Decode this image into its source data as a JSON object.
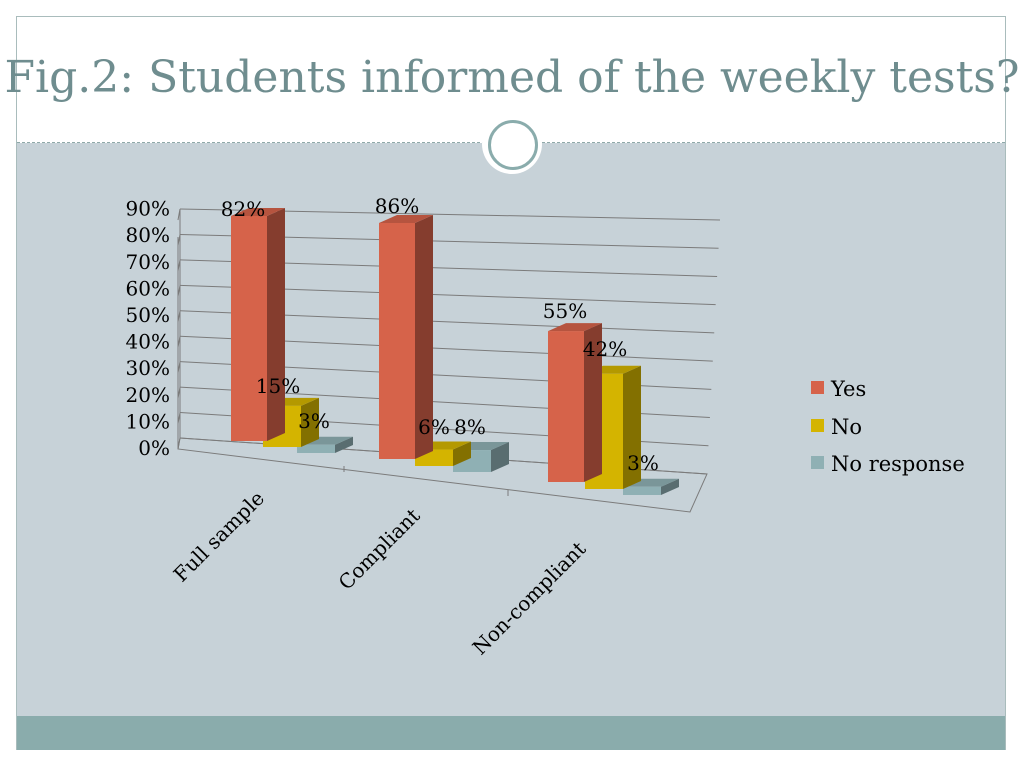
{
  "slide": {
    "title": "Fig.2: Students informed of the weekly tests?"
  },
  "colors": {
    "background": "#c7d2d8",
    "footer": "#8aacac",
    "title": "#6f8d8f"
  },
  "chart_data": {
    "type": "bar",
    "style": "3d-clustered",
    "categories": [
      "Full sample",
      "Compliant",
      "Non-compliant"
    ],
    "series": [
      {
        "name": "Yes",
        "color": "#d6634a",
        "values": [
          82,
          86,
          55
        ],
        "labels": [
          "82%",
          "86%",
          "55%"
        ]
      },
      {
        "name": "No",
        "color": "#d4b400",
        "values": [
          15,
          6,
          42
        ],
        "labels": [
          "15%",
          "6%",
          "42%"
        ]
      },
      {
        "name": "No response",
        "color": "#8fb0b4",
        "values": [
          3,
          8,
          3
        ],
        "labels": [
          "3%",
          "8%",
          "3%"
        ]
      }
    ],
    "yticks": [
      "0%",
      "10%",
      "20%",
      "30%",
      "40%",
      "50%",
      "60%",
      "70%",
      "80%",
      "90%"
    ],
    "ylim": [
      0,
      90
    ],
    "grid": true,
    "legend_position": "right",
    "xlabel": "",
    "ylabel": ""
  }
}
